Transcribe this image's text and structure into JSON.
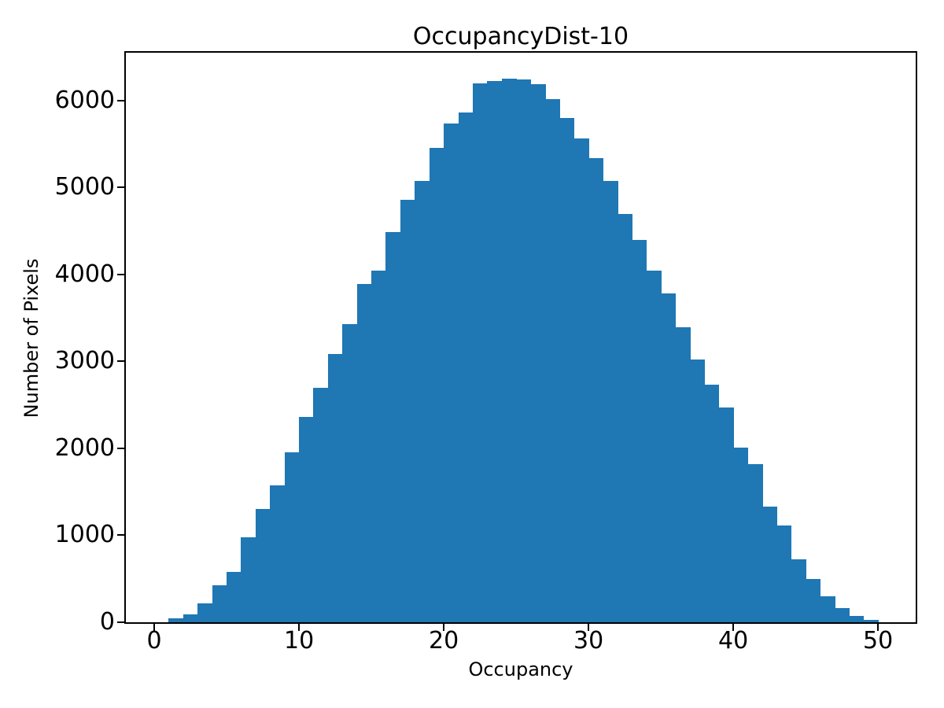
{
  "chart_data": {
    "type": "bar",
    "subtype": "histogram",
    "title": "OccupancyDist-10",
    "xlabel": "Occupancy",
    "ylabel": "Number of Pixels",
    "bar_color": "#1f77b4",
    "background_color": "#ffffff",
    "grid": false,
    "legend": "none",
    "first_bin_left_edge": 1,
    "bin_width": 1,
    "values": [
      45,
      95,
      220,
      425,
      580,
      975,
      1305,
      1575,
      1955,
      2360,
      2695,
      3085,
      3430,
      3890,
      4045,
      4490,
      4860,
      5075,
      5455,
      5740,
      5860,
      6200,
      6225,
      6255,
      6245,
      6190,
      6015,
      5805,
      5565,
      5335,
      5075,
      4700,
      4400,
      4045,
      3780,
      3390,
      3025,
      2730,
      2470,
      2010,
      1820,
      1330,
      1115,
      725,
      500,
      300,
      160,
      75,
      30
    ],
    "xlim": [
      -1.96,
      52.6
    ],
    "ylim": [
      0,
      6552
    ],
    "xticks": [
      0,
      10,
      20,
      30,
      40,
      50
    ],
    "xtick_labels": [
      "0",
      "10",
      "20",
      "30",
      "40",
      "50"
    ],
    "yticks": [
      0,
      1000,
      2000,
      3000,
      4000,
      5000,
      6000
    ],
    "ytick_labels": [
      "0",
      "1000",
      "2000",
      "3000",
      "4000",
      "5000",
      "6000"
    ]
  }
}
